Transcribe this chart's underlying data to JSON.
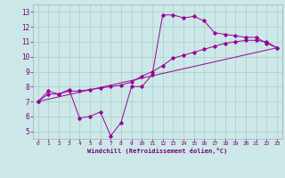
{
  "title": "",
  "xlabel": "Windchill (Refroidissement éolien,°C)",
  "ylabel": "",
  "bg_color": "#cce8e8",
  "line_color": "#990099",
  "grid_color": "#aacccc",
  "xlim": [
    -0.5,
    23.5
  ],
  "ylim": [
    4.5,
    13.5
  ],
  "xticks": [
    0,
    1,
    2,
    3,
    4,
    5,
    6,
    7,
    8,
    9,
    10,
    11,
    12,
    13,
    14,
    15,
    16,
    17,
    18,
    19,
    20,
    21,
    22,
    23
  ],
  "yticks": [
    5,
    6,
    7,
    8,
    9,
    10,
    11,
    12,
    13
  ],
  "series": [
    {
      "x": [
        0,
        1,
        2,
        3,
        4,
        5,
        6,
        7,
        8,
        9,
        10,
        11,
        12,
        13,
        14,
        15,
        16,
        17,
        18,
        19,
        20,
        21,
        22,
        23
      ],
      "y": [
        7.0,
        7.7,
        7.5,
        7.8,
        5.9,
        6.0,
        6.3,
        4.7,
        5.6,
        8.0,
        8.0,
        8.8,
        12.8,
        12.8,
        12.6,
        12.7,
        12.4,
        11.6,
        11.5,
        11.4,
        11.3,
        11.3,
        10.9,
        10.6
      ],
      "has_markers": true
    },
    {
      "x": [
        0,
        1,
        2,
        3,
        4,
        5,
        6,
        7,
        8,
        9,
        10,
        11,
        12,
        13,
        14,
        15,
        16,
        17,
        18,
        19,
        20,
        21,
        22,
        23
      ],
      "y": [
        7.0,
        7.5,
        7.5,
        7.7,
        7.7,
        7.8,
        7.9,
        8.0,
        8.1,
        8.3,
        8.7,
        9.0,
        9.4,
        9.9,
        10.1,
        10.3,
        10.5,
        10.7,
        10.9,
        11.0,
        11.1,
        11.1,
        11.0,
        10.6
      ],
      "has_markers": true
    },
    {
      "x": [
        0,
        23
      ],
      "y": [
        7.0,
        10.6
      ],
      "has_markers": false
    }
  ]
}
